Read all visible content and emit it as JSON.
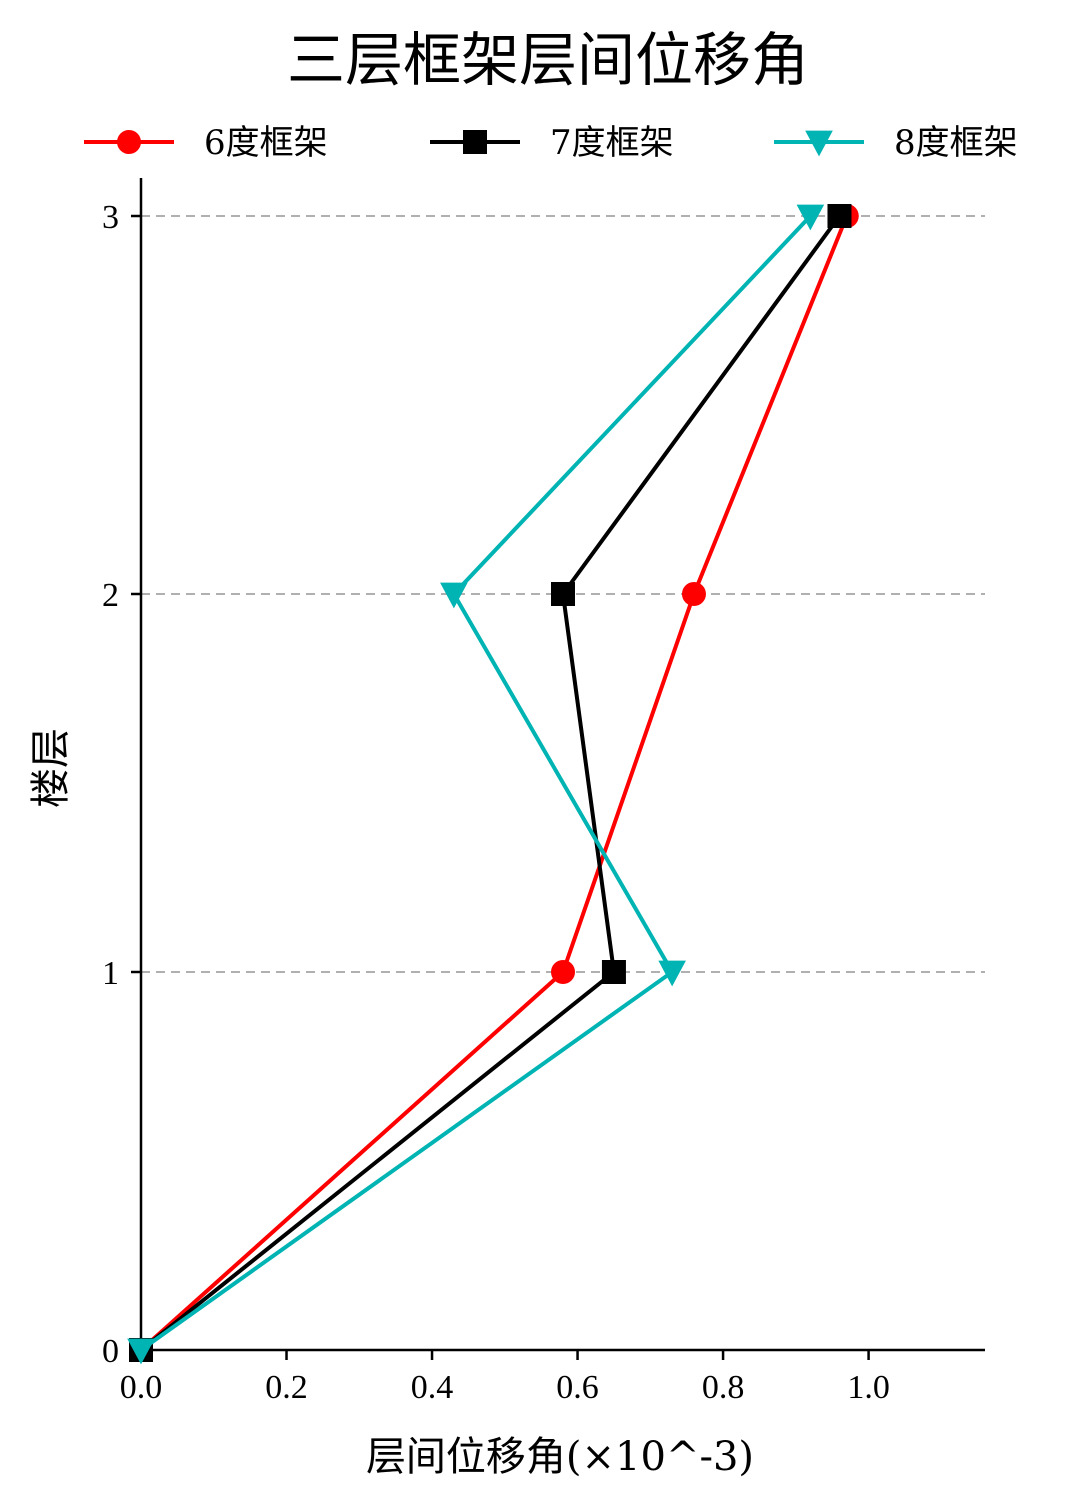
{
  "chart_data": {
    "type": "line",
    "title": "三层框架层间位移角",
    "xlabel": "层间位移角(×10^-3)",
    "ylabel": "楼层",
    "xlim": [
      0,
      1.16
    ],
    "ylim": [
      0,
      3
    ],
    "x_ticks": [
      "0.0",
      "0.2",
      "0.4",
      "0.6",
      "0.8",
      "1.0"
    ],
    "y_ticks": [
      "0",
      "1",
      "2",
      "3"
    ],
    "grid": "horizontal dashed at floor levels",
    "legend_position": "top",
    "series": [
      {
        "name": "6度框架",
        "color": "#ff0000",
        "marker": "circle",
        "points": [
          [
            0,
            0
          ],
          [
            0.58,
            1
          ],
          [
            0.76,
            2
          ],
          [
            0.97,
            3
          ]
        ]
      },
      {
        "name": "7度框架",
        "color": "#000000",
        "marker": "square",
        "points": [
          [
            0,
            0
          ],
          [
            0.65,
            1
          ],
          [
            0.58,
            2
          ],
          [
            0.96,
            3
          ]
        ]
      },
      {
        "name": "8度框架",
        "color": "#00b4b4",
        "marker": "triangle-down",
        "points": [
          [
            0,
            0
          ],
          [
            0.73,
            1
          ],
          [
            0.43,
            2
          ],
          [
            0.92,
            3
          ]
        ]
      }
    ]
  }
}
